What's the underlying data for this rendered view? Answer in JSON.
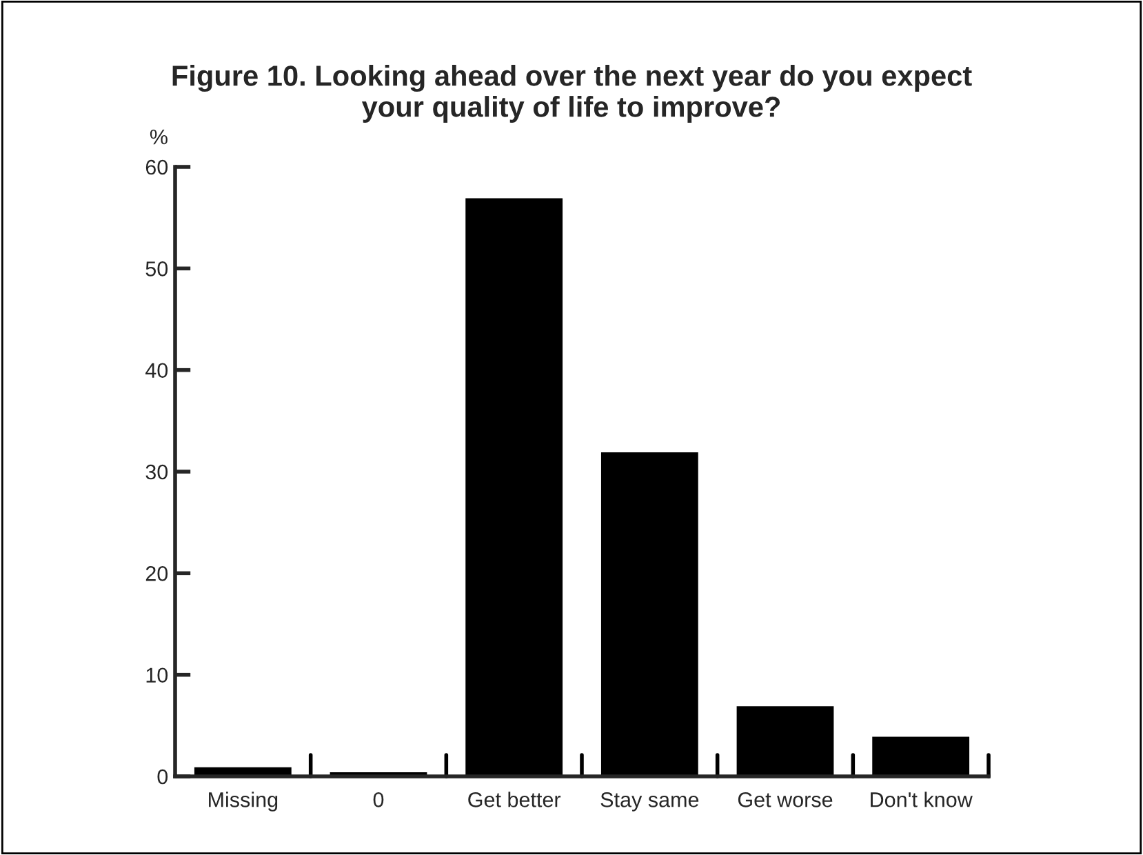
{
  "chart_data": {
    "type": "bar",
    "title": "Figure 10. Looking ahead over the next year do you expect\nyour quality of life to improve?",
    "ylabel": "%",
    "categories": [
      "Missing",
      "0",
      "Get better",
      "Stay same",
      "Get worse",
      "Don't know"
    ],
    "values": [
      1,
      0.5,
      57,
      32,
      7,
      4
    ],
    "color": "#000000",
    "ylim": [
      0,
      60
    ],
    "yticks": [
      0,
      10,
      20,
      30,
      40,
      50,
      60
    ],
    "grid": false
  }
}
